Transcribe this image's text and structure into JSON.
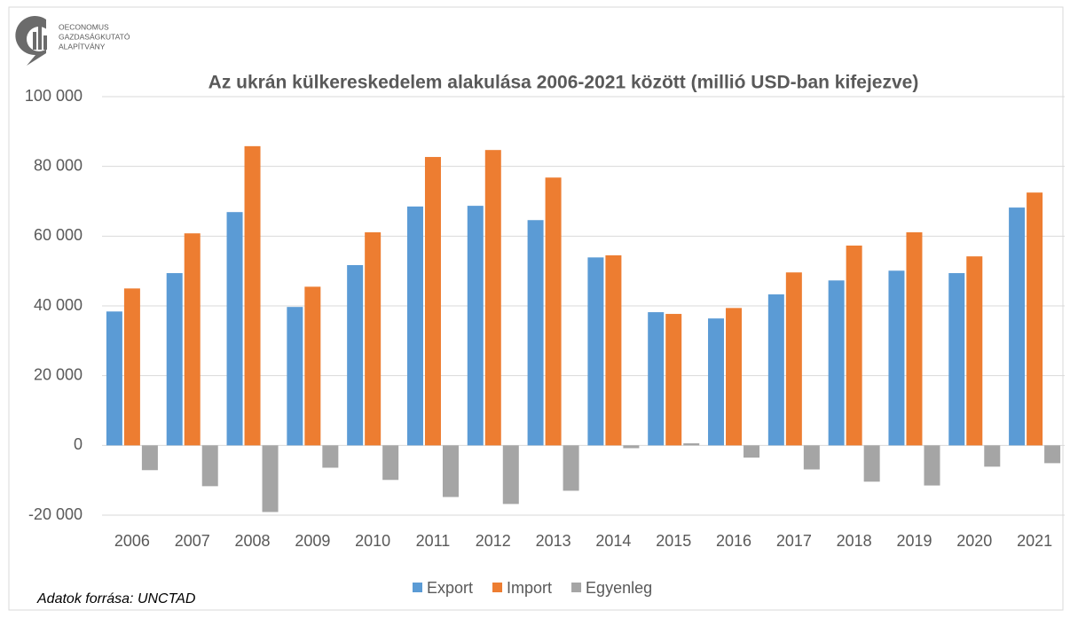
{
  "logo": {
    "lines": [
      "OECONOMUS",
      "GAZDASÁGKUTATÓ",
      "ALAPÍTVÁNY"
    ]
  },
  "source_note": "Adatok forrása: UNCTAD",
  "chart_data": {
    "type": "bar",
    "title": "Az ukrán külkereskedelem alakulása 2006-2021 között (millió USD-ban kifejezve)",
    "categories": [
      "2006",
      "2007",
      "2008",
      "2009",
      "2010",
      "2011",
      "2012",
      "2013",
      "2014",
      "2015",
      "2016",
      "2017",
      "2018",
      "2019",
      "2020",
      "2021"
    ],
    "series": [
      {
        "name": "Export",
        "color": "#5b9bd5",
        "values": [
          38400,
          49400,
          66900,
          39700,
          51700,
          68500,
          68700,
          64600,
          53900,
          38200,
          36400,
          43300,
          47300,
          50100,
          49400,
          68200
        ]
      },
      {
        "name": "Import",
        "color": "#ed7d31",
        "values": [
          45000,
          60800,
          85800,
          45500,
          61100,
          82700,
          84700,
          76800,
          54500,
          37700,
          39400,
          49600,
          57300,
          61100,
          54200,
          72500
        ]
      },
      {
        "name": "Egyenleg",
        "color": "#a5a5a5",
        "values": [
          -7100,
          -11700,
          -19100,
          -6400,
          -9900,
          -14800,
          -16800,
          -13000,
          -800,
          600,
          -3500,
          -6900,
          -10400,
          -11500,
          -6100,
          -5100
        ]
      }
    ],
    "ylim": [
      -20000,
      100000
    ],
    "yticks": [
      {
        "value": -20000,
        "label": "-20 000"
      },
      0,
      {
        "value": 20000,
        "label": "20 000"
      },
      {
        "value": 40000,
        "label": "40 000"
      },
      {
        "value": 60000,
        "label": "60 000"
      },
      {
        "value": 80000,
        "label": "80 000"
      },
      {
        "value": 100000,
        "label": "100 000"
      }
    ],
    "grid": true,
    "legend": "bottom"
  }
}
